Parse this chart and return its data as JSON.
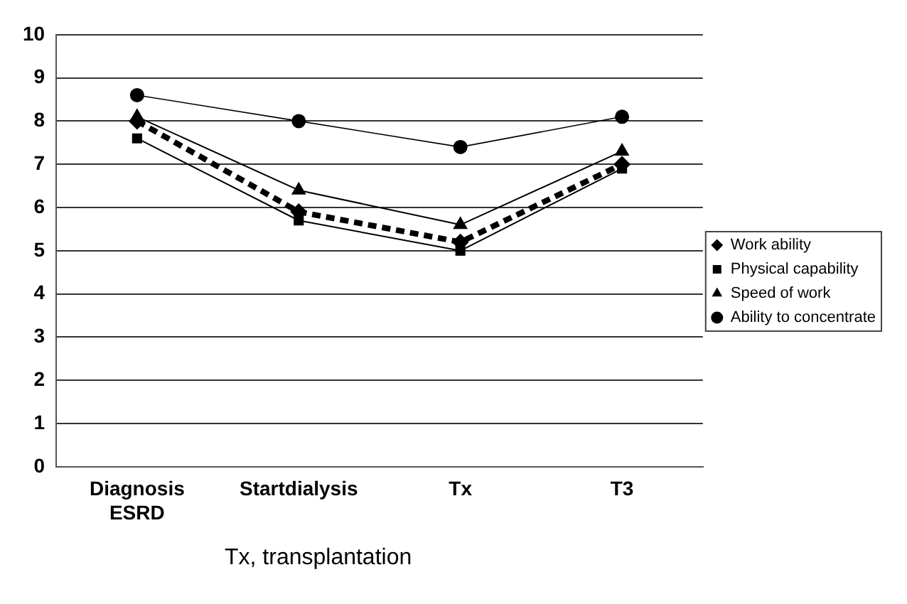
{
  "chart_data": {
    "type": "line",
    "categories": [
      "Diagnosis ESRD",
      "Startdialysis",
      "Tx",
      "T3"
    ],
    "series": [
      {
        "name": "Work ability",
        "color": "#000000",
        "values": [
          8.0,
          5.9,
          5.2,
          7.0
        ],
        "marker": "diamond",
        "line_style": "dashed"
      },
      {
        "name": "Physical capability",
        "color": "#000000",
        "values": [
          7.6,
          5.7,
          5.0,
          6.9
        ],
        "marker": "square",
        "line_style": "solid"
      },
      {
        "name": "Speed of work",
        "color": "#000000",
        "values": [
          8.1,
          6.4,
          5.6,
          7.3
        ],
        "marker": "triangle",
        "line_style": "solid"
      },
      {
        "name": "Ability to concentrate",
        "color": "#000000",
        "values": [
          8.6,
          8.0,
          7.4,
          8.1
        ],
        "marker": "circle",
        "line_style": "solid"
      }
    ],
    "ylim": [
      0,
      10
    ],
    "yticks": [
      0,
      1,
      2,
      3,
      4,
      5,
      6,
      7,
      8,
      9,
      10
    ],
    "grid": "y",
    "legend": "right",
    "annotations": [
      "Tx, transplantation"
    ]
  }
}
